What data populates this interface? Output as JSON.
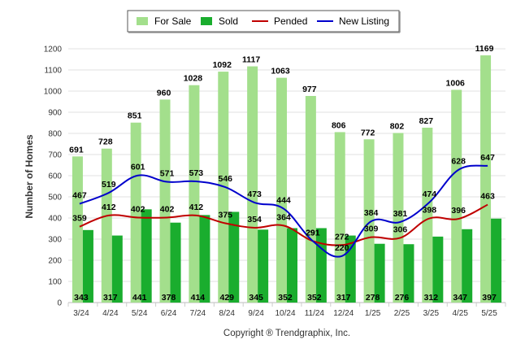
{
  "chart_data": {
    "type": "bar",
    "categories": [
      "3/24",
      "4/24",
      "5/24",
      "6/24",
      "7/24",
      "8/24",
      "9/24",
      "10/24",
      "11/24",
      "12/24",
      "1/25",
      "2/25",
      "3/25",
      "4/25",
      "5/25"
    ],
    "series": [
      {
        "name": "For Sale",
        "kind": "bar",
        "color": "#a3df8c",
        "values": [
          691,
          728,
          851,
          960,
          1028,
          1092,
          1117,
          1063,
          977,
          806,
          772,
          802,
          827,
          1006,
          1169
        ]
      },
      {
        "name": "Sold",
        "kind": "bar",
        "color": "#1aad2e",
        "values": [
          343,
          317,
          441,
          378,
          414,
          429,
          345,
          352,
          352,
          317,
          278,
          276,
          312,
          347,
          397
        ]
      },
      {
        "name": "Pended",
        "kind": "line",
        "color": "#c00000",
        "values": [
          359,
          412,
          402,
          402,
          412,
          375,
          354,
          364,
          291,
          272,
          309,
          306,
          398,
          396,
          463
        ]
      },
      {
        "name": "New Listing",
        "kind": "line",
        "color": "#0000cc",
        "values": [
          467,
          519,
          601,
          571,
          573,
          546,
          473,
          444,
          291,
          220,
          384,
          381,
          474,
          628,
          647
        ]
      }
    ],
    "ylabel": "Number of Homes",
    "xlabel": "",
    "ylim": [
      0,
      1200
    ],
    "yticks": [
      0,
      100,
      200,
      300,
      400,
      500,
      600,
      700,
      800,
      900,
      1000,
      1100,
      1200
    ],
    "grid": true,
    "legend_position": "top-center"
  },
  "legend": [
    {
      "label": "For Sale",
      "color": "#a3df8c",
      "icon": "bar-swatch"
    },
    {
      "label": "Sold",
      "color": "#1aad2e",
      "icon": "bar-swatch"
    },
    {
      "label": "Pended",
      "color": "#c00000",
      "icon": "line-swatch"
    },
    {
      "label": "New Listing",
      "color": "#0000cc",
      "icon": "line-swatch"
    }
  ],
  "footer": {
    "copyright": "Copyright ® Trendgraphix, Inc."
  }
}
